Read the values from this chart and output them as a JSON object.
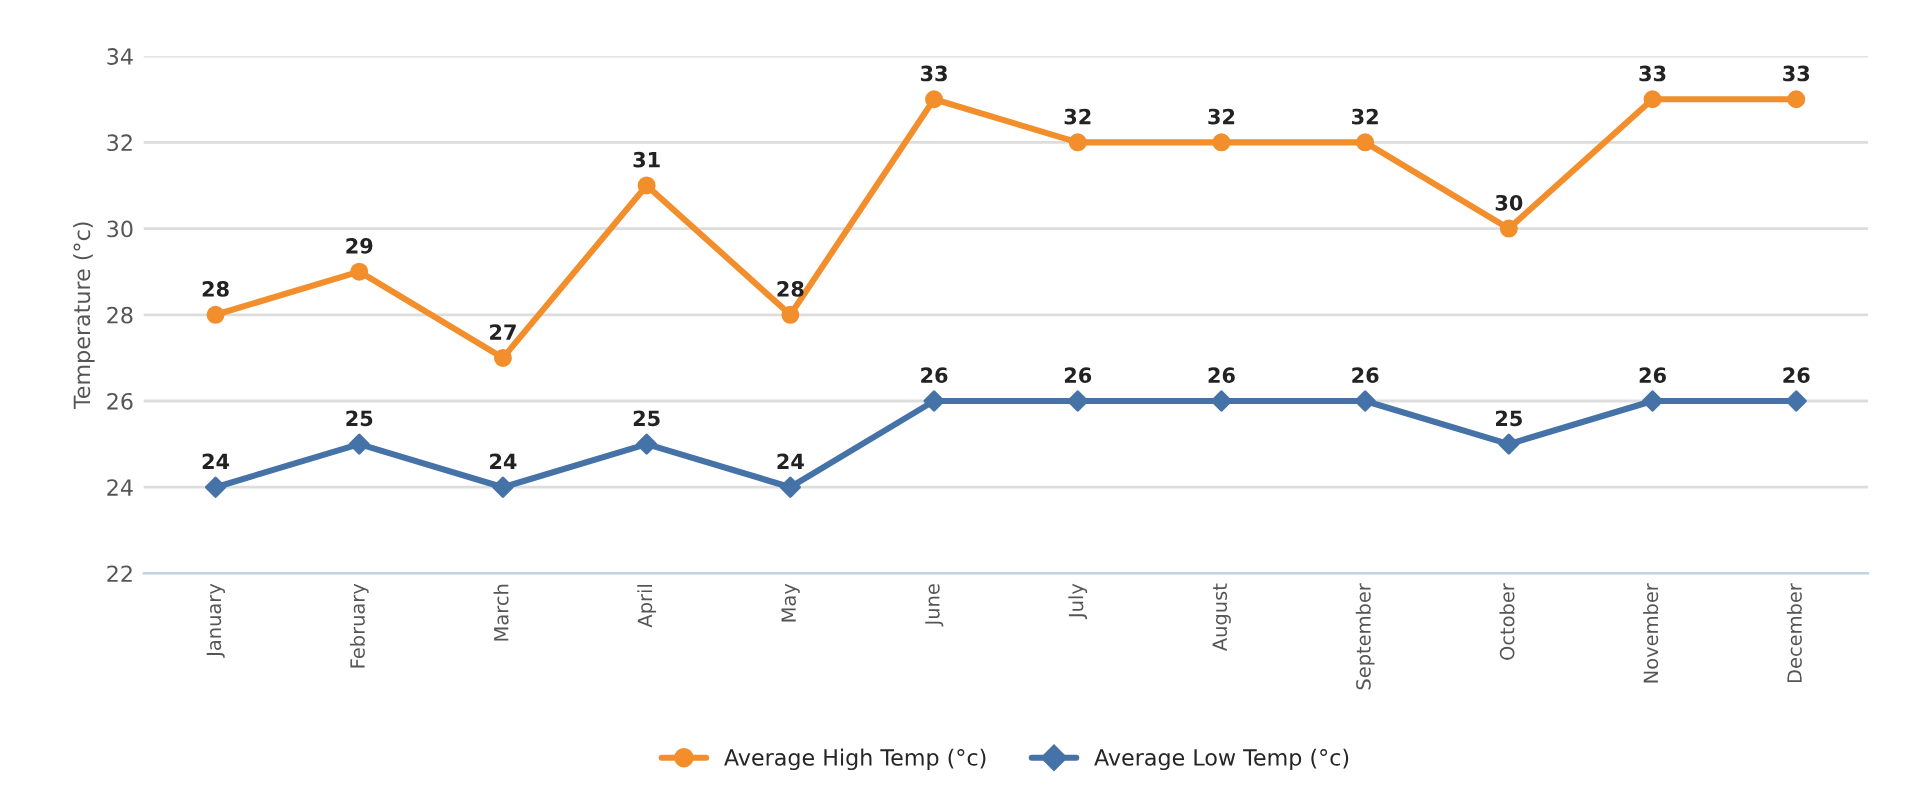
{
  "chart_data": {
    "type": "line",
    "ylabel": "Temperature (°c)",
    "categories": [
      "January",
      "February",
      "March",
      "April",
      "May",
      "June",
      "July",
      "August",
      "September",
      "October",
      "November",
      "December"
    ],
    "series": [
      {
        "name": "Average High Temp (°c)",
        "color": "#f28f2c",
        "marker": "circle",
        "values": [
          28,
          29,
          27,
          31,
          28,
          33,
          32,
          32,
          32,
          30,
          33,
          33
        ]
      },
      {
        "name": "Average Low Temp (°c)",
        "color": "#4572a7",
        "marker": "diamond",
        "values": [
          24,
          25,
          24,
          25,
          24,
          26,
          26,
          26,
          26,
          25,
          26,
          26
        ]
      }
    ],
    "ylim": [
      22,
      34
    ],
    "yticks": [
      22,
      24,
      26,
      28,
      30,
      32,
      34
    ],
    "grid": "y",
    "legend": "bottom",
    "data_labels": true,
    "line_style": "solid"
  }
}
